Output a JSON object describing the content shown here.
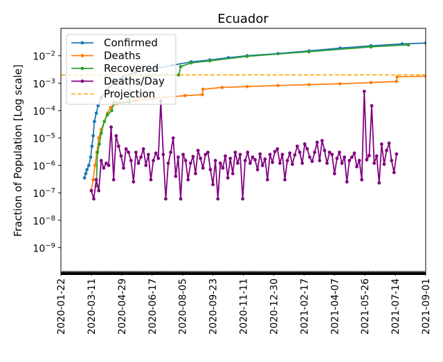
{
  "chart_data": {
    "type": "line",
    "title": "Ecuador",
    "xlabel": "",
    "ylabel": "Fraction of Population [Log scale]",
    "yscale": "log",
    "ylim": [
      1.2e-10,
      0.1
    ],
    "x_start_date": "2020-01-22",
    "x_unit": "days since 2020-01-22",
    "xlim": [
      0,
      588
    ],
    "xtick_days": [
      0,
      49,
      98,
      147,
      196,
      245,
      294,
      343,
      392,
      441,
      490,
      539,
      588
    ],
    "xtick_labels": [
      "2020-01-22",
      "2020-03-11",
      "2020-04-29",
      "2020-06-17",
      "2020-08-05",
      "2020-09-23",
      "2020-11-11",
      "2020-12-30",
      "2021-02-17",
      "2021-04-07",
      "2021-05-26",
      "2021-07-14",
      "2021-09-01"
    ],
    "ytick_values": [
      0.01,
      0.001,
      0.0001,
      1e-05,
      1e-06,
      1e-07,
      1e-08,
      1e-09
    ],
    "ytick_exponents": [
      "−2",
      "−3",
      "−4",
      "−5",
      "−6",
      "−7",
      "−8",
      "−9"
    ],
    "ytick_base": "10",
    "legend_position": "top-left",
    "series": [
      {
        "name": "Confirmed",
        "color": "#1f77b4",
        "style": "line-marker",
        "x": [
          38,
          40,
          42,
          45,
          48,
          50,
          52,
          54,
          57,
          60,
          65,
          75,
          85,
          100,
          120,
          150,
          180,
          210,
          240,
          270,
          300,
          350,
          400,
          450,
          500,
          550,
          588
        ],
        "y": [
          3.5e-07,
          5e-07,
          7e-07,
          1e-06,
          2e-06,
          5e-06,
          1.2e-05,
          4e-05,
          8e-05,
          0.00015,
          0.0003,
          0.0006,
          0.001,
          0.0017,
          0.0025,
          0.0033,
          0.0045,
          0.006,
          0.007,
          0.0085,
          0.01,
          0.012,
          0.015,
          0.019,
          0.023,
          0.027,
          0.029
        ]
      },
      {
        "name": "Deaths",
        "color": "#ff7f0e",
        "style": "line-marker",
        "x": [
          49,
          52,
          55,
          58,
          61,
          65,
          70,
          75,
          80,
          90,
          120,
          150,
          200,
          228,
          229,
          260,
          300,
          350,
          400,
          450,
          500,
          541,
          542,
          588
        ],
        "y": [
          1.2e-07,
          3e-07,
          1e-06,
          3e-06,
          1e-05,
          2e-05,
          4e-05,
          8e-05,
          0.00013,
          0.00018,
          0.00023,
          0.00028,
          0.00035,
          0.00038,
          0.0006,
          0.0007,
          0.00075,
          0.00082,
          0.00088,
          0.00095,
          0.00105,
          0.00115,
          0.0017,
          0.0018
        ]
      },
      {
        "name": "Recovered",
        "color": "#2ca02c",
        "style": "line-marker",
        "x": [
          57,
          59,
          62,
          65,
          70,
          75,
          82,
          85,
          110,
          112,
          190,
          193,
          210,
          240,
          300,
          400,
          500,
          560
        ],
        "y": [
          1.8e-07,
          3e-06,
          6e-06,
          1.5e-05,
          4e-05,
          7e-05,
          0.0001,
          0.0002,
          0.0002,
          0.002,
          0.002,
          0.004,
          0.0055,
          0.0065,
          0.0095,
          0.014,
          0.021,
          0.025
        ]
      },
      {
        "name": "Deaths/Day",
        "color": "#800080",
        "style": "line-marker",
        "x_start": 49,
        "x_step": 4,
        "y": [
          1.2e-07,
          6e-08,
          3e-07,
          1.2e-07,
          1.5e-06,
          8e-07,
          1.2e-06,
          1e-06,
          2.5e-05,
          3e-07,
          1.2e-05,
          5e-06,
          2.2e-06,
          8e-07,
          4e-06,
          3e-06,
          1.5e-06,
          2.5e-07,
          3e-06,
          1.2e-06,
          2e-06,
          4e-06,
          1e-06,
          2.5e-06,
          3e-07,
          1.5e-06,
          2.8e-06,
          1.8e-06,
          0.00022,
          2.5e-06,
          6e-08,
          1.2e-06,
          3e-06,
          1e-05,
          4e-07,
          2e-06,
          6e-08,
          2.5e-06,
          1.5e-06,
          3e-07,
          1.2e-06,
          2.1e-06,
          5e-07,
          3.5e-06,
          1.8e-06,
          8e-07,
          2.5e-06,
          3e-06,
          7e-07,
          2e-07,
          1.5e-06,
          6e-08,
          1.2e-06,
          8e-07,
          2.2e-06,
          3.5e-07,
          1.8e-06,
          5e-07,
          3e-06,
          1.2e-06,
          2.5e-06,
          6e-08,
          1.5e-06,
          3e-06,
          1.2e-06,
          2e-06,
          1.6e-06,
          7e-07,
          2.6e-06,
          1e-06,
          1.7e-06,
          3e-07,
          2.5e-06,
          1.3e-06,
          3.2e-06,
          4e-06,
          1.2e-06,
          2.5e-06,
          3e-07,
          1.5e-06,
          2.8e-06,
          1.1e-06,
          2.4e-06,
          5e-06,
          3e-06,
          1.2e-06,
          6e-06,
          4e-06,
          2e-06,
          1.4e-06,
          3e-06,
          7e-06,
          1.5e-06,
          8e-06,
          3.5e-06,
          1.2e-06,
          3e-06,
          2.5e-06,
          5e-07,
          1.8e-06,
          3e-06,
          1.2e-06,
          2e-06,
          2.5e-07,
          1.5e-06,
          2e-06,
          2.8e-06,
          9e-07,
          1.5e-06,
          3e-07,
          0.0005,
          1.6e-06,
          2.3e-06,
          0.00015,
          1.2e-06,
          2.2e-06,
          2.3e-07,
          6e-06,
          1.1e-06,
          3.5e-06,
          6.5e-06,
          1.5e-06,
          5.5e-07,
          2.6e-06
        ]
      },
      {
        "name": "Projection",
        "color": "#ffa500",
        "style": "dashed",
        "value": 0.002
      }
    ]
  }
}
